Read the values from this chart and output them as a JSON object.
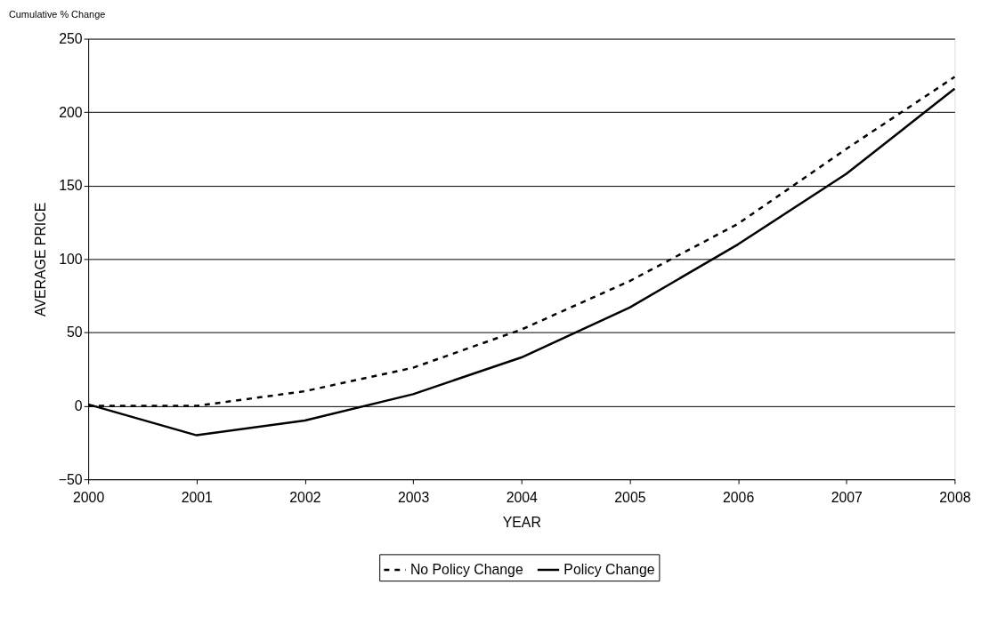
{
  "chart_data": {
    "type": "line",
    "title": "Cumulative % Change",
    "xlabel": "YEAR",
    "ylabel": "AVERAGE PRICE",
    "x": [
      2000,
      2001,
      2002,
      2003,
      2004,
      2005,
      2006,
      2007,
      2008
    ],
    "xlim": [
      2000,
      2008
    ],
    "xticks": [
      2000,
      2001,
      2002,
      2003,
      2004,
      2005,
      2006,
      2007,
      2008
    ],
    "ylim": [
      -50,
      250
    ],
    "yticks": [
      -50,
      0,
      50,
      100,
      150,
      200,
      250
    ],
    "grid": "y",
    "legend": "bottom",
    "marker": "none",
    "series": [
      {
        "name": "No Policy Change",
        "color": "#000000",
        "line_style": "dashed",
        "values": [
          0,
          0,
          10,
          26,
          52,
          85,
          124,
          175,
          224
        ]
      },
      {
        "name": "Policy Change",
        "color": "#000000",
        "line_style": "solid",
        "values": [
          1,
          -20,
          -10,
          8,
          33,
          67,
          110,
          158,
          216
        ]
      }
    ]
  }
}
